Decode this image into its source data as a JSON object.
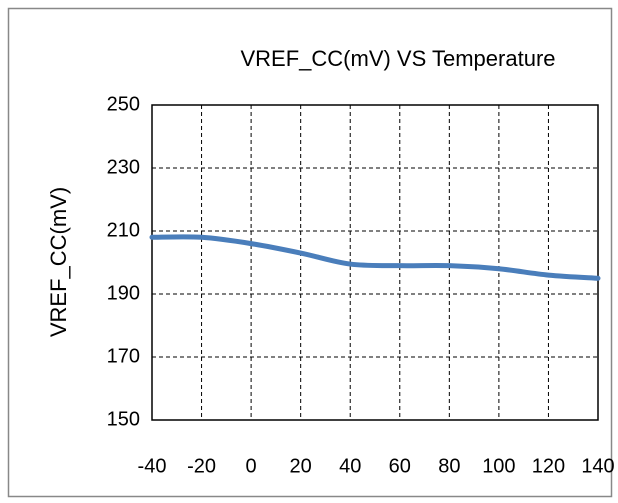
{
  "chart_data": {
    "type": "line",
    "title": "VREF_CC(mV) VS Temperature",
    "y_label": "VREF_CC(mV)",
    "x": [
      -40,
      -20,
      0,
      20,
      40,
      60,
      80,
      100,
      120,
      140
    ],
    "series": [
      {
        "name": "VREF_CC",
        "color": "#4a7ebb",
        "values": [
          208,
          208,
          206,
          203,
          199.5,
          199,
          199,
          198,
          196,
          195
        ]
      }
    ],
    "xlim": [
      -40,
      140
    ],
    "xticks": [
      -40,
      -20,
      0,
      20,
      40,
      60,
      80,
      100,
      120,
      140
    ],
    "ylim": [
      150,
      250
    ],
    "yticks": [
      150,
      170,
      190,
      210,
      230,
      250
    ],
    "grid": true
  }
}
